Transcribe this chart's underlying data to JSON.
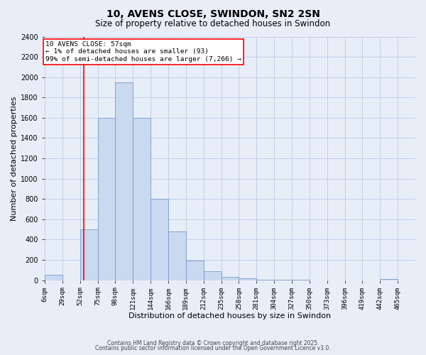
{
  "title": "10, AVENS CLOSE, SWINDON, SN2 2SN",
  "subtitle": "Size of property relative to detached houses in Swindon",
  "xlabel": "Distribution of detached houses by size in Swindon",
  "ylabel": "Number of detached properties",
  "bar_labels": [
    "6sqm",
    "29sqm",
    "52sqm",
    "75sqm",
    "98sqm",
    "121sqm",
    "144sqm",
    "166sqm",
    "189sqm",
    "212sqm",
    "235sqm",
    "258sqm",
    "281sqm",
    "304sqm",
    "327sqm",
    "350sqm",
    "373sqm",
    "396sqm",
    "419sqm",
    "442sqm",
    "465sqm"
  ],
  "bar_values": [
    50,
    0,
    500,
    1600,
    1950,
    1600,
    800,
    480,
    190,
    90,
    35,
    15,
    5,
    2,
    1,
    0,
    0,
    0,
    0,
    10,
    0
  ],
  "bar_color": "#c9d9f0",
  "bar_edge_color": "#7799cc",
  "grid_color": "#c0cfea",
  "bg_color": "#e8eef8",
  "vline_x": 57,
  "vline_color": "red",
  "annotation_title": "10 AVENS CLOSE: 57sqm",
  "annotation_line1": "← 1% of detached houses are smaller (93)",
  "annotation_line2": "99% of semi-detached houses are larger (7,266) →",
  "annotation_box_color": "white",
  "annotation_box_edge": "red",
  "ylim": [
    0,
    2400
  ],
  "yticks": [
    0,
    200,
    400,
    600,
    800,
    1000,
    1200,
    1400,
    1600,
    1800,
    2000,
    2200,
    2400
  ],
  "footer1": "Contains HM Land Registry data © Crown copyright and database right 2025.",
  "footer2": "Contains public sector information licensed under the Open Government Licence v3.0.",
  "bin_width": 23
}
